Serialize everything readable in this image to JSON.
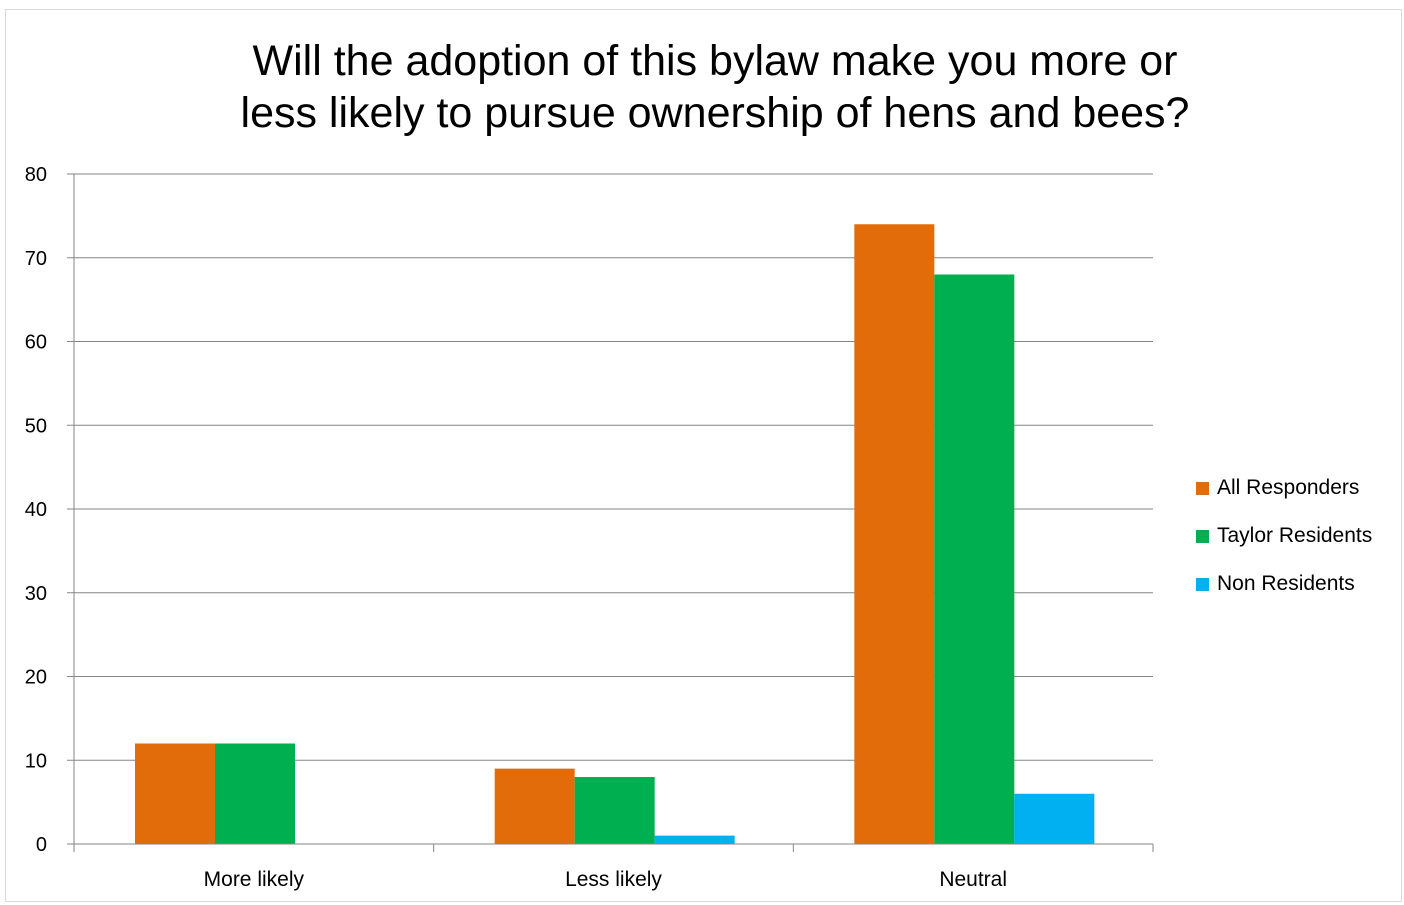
{
  "chart_data": {
    "type": "bar",
    "title": [
      "Will the adoption of this bylaw make you more or",
      "less likely to pursue ownership of hens and bees?"
    ],
    "categories": [
      "More likely",
      "Less likely",
      "Neutral"
    ],
    "series": [
      {
        "name": "All Responders",
        "color": "#e36c0a",
        "values": [
          12,
          9,
          74
        ]
      },
      {
        "name": "Taylor Residents",
        "color": "#00b050",
        "values": [
          12,
          8,
          68
        ]
      },
      {
        "name": "Non Residents",
        "color": "#00b0f0",
        "values": [
          0,
          1,
          6
        ]
      }
    ],
    "ylim": [
      0,
      80
    ],
    "yticks": [
      0,
      10,
      20,
      30,
      40,
      50,
      60,
      70,
      80
    ],
    "grid": true,
    "legend": "right"
  }
}
